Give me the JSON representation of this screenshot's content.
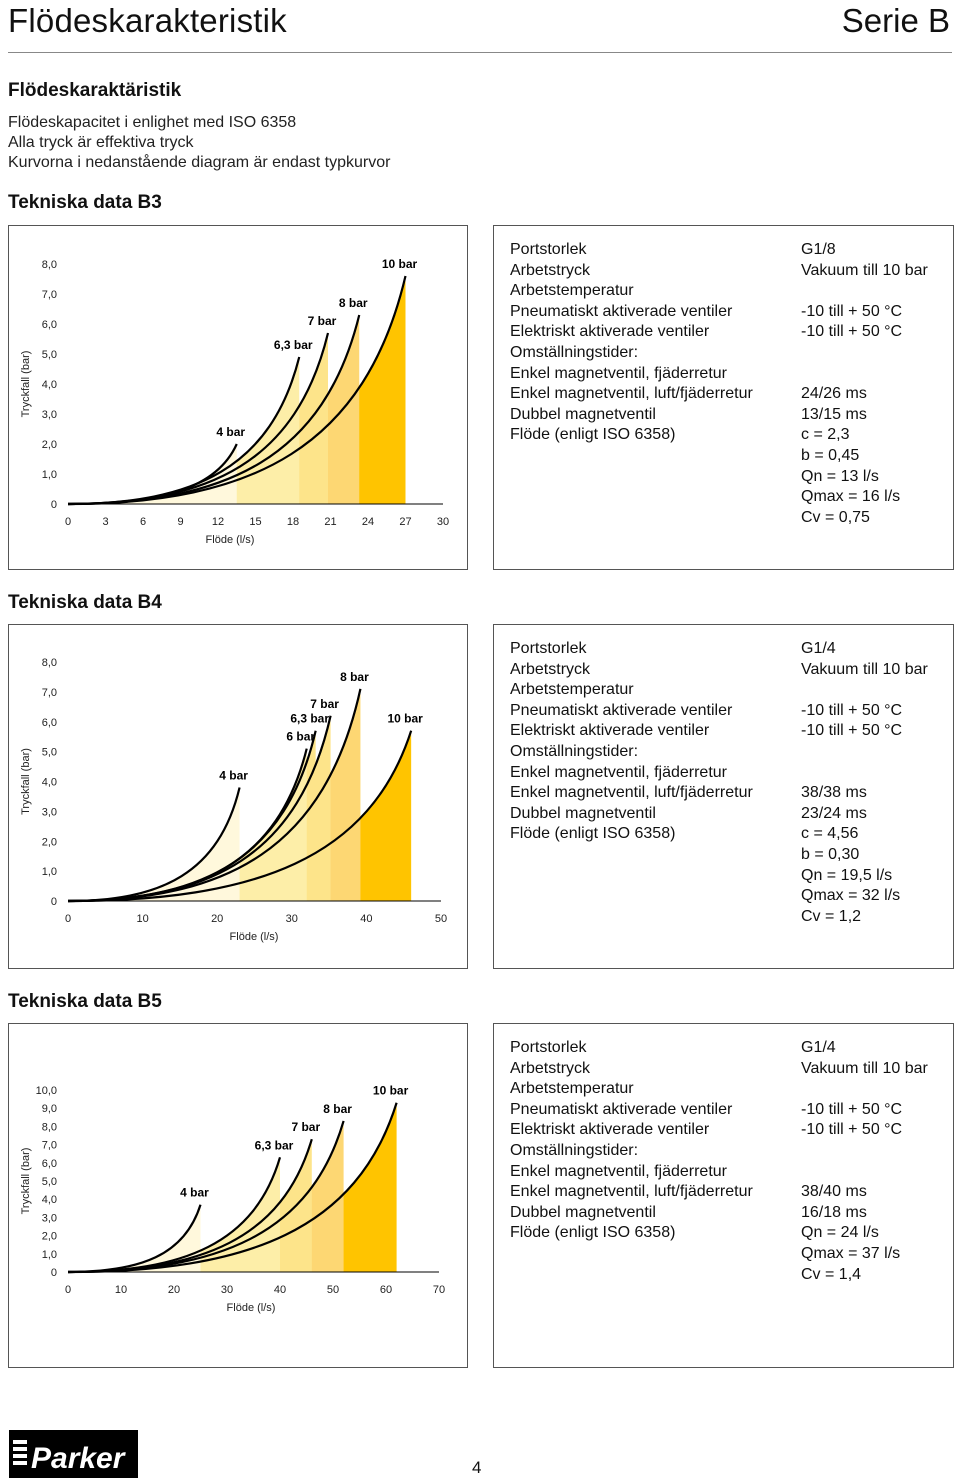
{
  "header": {
    "title": "Flödeskarakteristik",
    "series": "Serie B"
  },
  "section": {
    "heading": "Flödeskaraktäristik",
    "intro": [
      "Flödeskapacitet i enlighet med ISO 6358",
      "Alla tryck är effektiva tryck",
      "Kurvorna i nedanstående diagram är endast typkurvor"
    ]
  },
  "chart_data": [
    {
      "type": "area",
      "title": "Tekniska data B3",
      "xlabel": "Flöde (l/s)",
      "ylabel": "Tryckfall (bar)",
      "xlim": [
        0,
        30
      ],
      "ylim": [
        0,
        8
      ],
      "xticks": [
        0,
        3,
        6,
        9,
        12,
        15,
        18,
        21,
        24,
        27,
        30
      ],
      "xtick_labels": [
        "0",
        "3",
        "6",
        "9",
        "12",
        "15",
        "18",
        "21",
        "24",
        "27",
        "30"
      ],
      "ytick_labels": [
        "0",
        "1,0",
        "2,0",
        "3,0",
        "4,0",
        "5,0",
        "6,0",
        "7,0",
        "8,0"
      ],
      "series": [
        {
          "name": "4 bar",
          "x_end": 13.5,
          "y_end": 2.0
        },
        {
          "name": "6,3 bar",
          "x_end": 18.5,
          "y_end": 4.9
        },
        {
          "name": "7 bar",
          "x_end": 20.8,
          "y_end": 5.7
        },
        {
          "name": "8 bar",
          "x_end": 23.3,
          "y_end": 6.3
        },
        {
          "name": "10 bar",
          "x_end": 27.0,
          "y_end": 7.6
        }
      ]
    },
    {
      "type": "area",
      "title": "Tekniska data B4",
      "xlabel": "Flöde (l/s)",
      "ylabel": "Tryckfall (bar)",
      "xlim": [
        0,
        50
      ],
      "ylim": [
        0,
        8
      ],
      "xticks": [
        0,
        10,
        20,
        30,
        40,
        50
      ],
      "xtick_labels": [
        "0",
        "10",
        "20",
        "30",
        "40",
        "50"
      ],
      "ytick_labels": [
        "0",
        "1,0",
        "2,0",
        "3,0",
        "4,0",
        "5,0",
        "6,0",
        "7,0",
        "8,0"
      ],
      "series": [
        {
          "name": "4 bar",
          "x_end": 23.0,
          "y_end": 3.8
        },
        {
          "name": "6 bar",
          "x_end": 32.0,
          "y_end": 5.1
        },
        {
          "name": "6,3 bar",
          "x_end": 33.2,
          "y_end": 5.7
        },
        {
          "name": "7 bar",
          "x_end": 35.2,
          "y_end": 6.2
        },
        {
          "name": "8 bar",
          "x_end": 39.2,
          "y_end": 7.1
        },
        {
          "name": "10 bar",
          "x_end": 46.0,
          "y_end": 5.7
        }
      ]
    },
    {
      "type": "area",
      "title": "Tekniska data B5",
      "xlabel": "Flöde (l/s)",
      "ylabel": "Tryckfall (bar)",
      "xlim": [
        0,
        70
      ],
      "ylim": [
        0,
        10
      ],
      "xticks": [
        0,
        10,
        20,
        30,
        40,
        50,
        60,
        70
      ],
      "xtick_labels": [
        "0",
        "10",
        "20",
        "30",
        "40",
        "50",
        "60",
        "70"
      ],
      "ytick_labels": [
        "0",
        "1,0",
        "2,0",
        "3,0",
        "4,0",
        "5,0",
        "6,0",
        "7,0",
        "8,0",
        "9,0",
        "10,0"
      ],
      "series": [
        {
          "name": "4 bar",
          "x_end": 25.0,
          "y_end": 3.7
        },
        {
          "name": "6,3 bar",
          "x_end": 40.0,
          "y_end": 6.3
        },
        {
          "name": "7 bar",
          "x_end": 46.0,
          "y_end": 7.3
        },
        {
          "name": "8 bar",
          "x_end": 52.0,
          "y_end": 8.3
        },
        {
          "name": "10 bar",
          "x_end": 62.0,
          "y_end": 9.3
        }
      ]
    }
  ],
  "tables": [
    {
      "heading": "Tekniska data B3",
      "labels": [
        "Portstorlek",
        "Arbetstryck",
        "Arbetstemperatur",
        "Pneumatiskt aktiverade ventiler",
        "Elektriskt aktiverade ventiler",
        "Omställningstider:",
        "Enkel magnetventil, fjäderretur",
        "Enkel magnetventil, luft/fjäderretur",
        "Dubbel magnetventil",
        "Flöde (enligt ISO 6358)",
        "",
        "",
        "",
        ""
      ],
      "values": [
        "G1/8",
        "Vakuum till 10 bar",
        "",
        "-10 till + 50 °C",
        "-10 till + 50 °C",
        "",
        "",
        "24/26 ms",
        "13/15 ms",
        "c = 2,3",
        "b = 0,45",
        "Qn = 13 l/s",
        "Qmax = 16 l/s",
        "Cv = 0,75"
      ]
    },
    {
      "heading": "Tekniska data B4",
      "labels": [
        "Portstorlek",
        "Arbetstryck",
        "Arbetstemperatur",
        "Pneumatiskt aktiverade ventiler",
        "Elektriskt aktiverade ventiler",
        "Omställningstider:",
        "Enkel magnetventil, fjäderretur",
        "Enkel magnetventil, luft/fjäderretur",
        "Dubbel magnetventil",
        "Flöde (enligt ISO 6358)",
        "",
        "",
        "",
        ""
      ],
      "values": [
        "G1/4",
        "Vakuum till 10 bar",
        "",
        "-10 till + 50 °C",
        "-10 till + 50 °C",
        "",
        "",
        "38/38 ms",
        "23/24 ms",
        "c = 4,56",
        "b = 0,30",
        "Qn = 19,5 l/s",
        "Qmax = 32 l/s",
        "Cv = 1,2"
      ]
    },
    {
      "heading": "Tekniska data B5",
      "labels": [
        "Portstorlek",
        "Arbetstryck",
        "Arbetstemperatur",
        "Pneumatiskt aktiverade ventiler",
        "Elektriskt aktiverade ventiler",
        "Omställningstider:",
        "Enkel magnetventil, fjäderretur",
        "Enkel magnetventil, luft/fjäderretur",
        "Dubbel magnetventil",
        "Flöde (enligt ISO 6358)",
        "",
        "",
        ""
      ],
      "values": [
        "G1/4",
        "Vakuum till 10 bar",
        "",
        "-10 till + 50 °C",
        "-10 till + 50 °C",
        "",
        "",
        "38/40 ms",
        "16/18 ms",
        "Qn = 24 l/s",
        "Qmax = 37 l/s",
        "Cv = 1,4",
        ""
      ]
    }
  ],
  "colors": {
    "fill": [
      "#fff8dc",
      "#fdeea8",
      "#fde48a",
      "#fdd773",
      "#ffc400"
    ],
    "curve": "#000000"
  },
  "footer": {
    "logo_text": "Parker",
    "page": "4"
  }
}
